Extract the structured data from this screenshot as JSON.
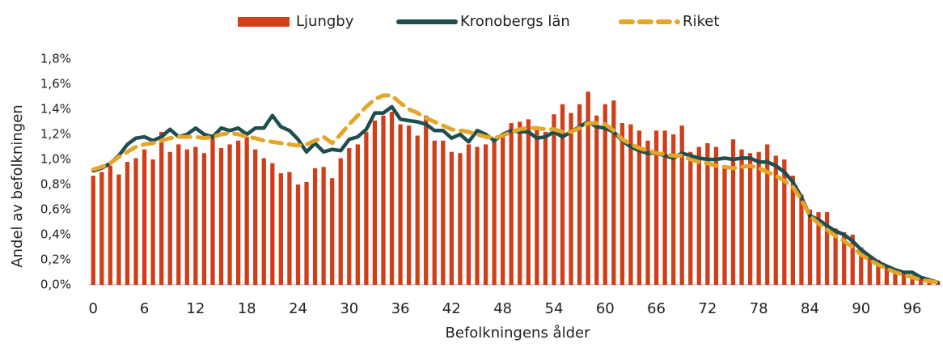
{
  "chart_data": {
    "type": "bar",
    "x_label": "Befolkningens ålder",
    "y_label": "Andel av befolkningen",
    "categories": [
      "0",
      null,
      null,
      null,
      null,
      null,
      "6",
      null,
      null,
      null,
      null,
      null,
      "12",
      null,
      null,
      null,
      null,
      null,
      "18",
      null,
      null,
      null,
      null,
      null,
      "24",
      null,
      null,
      null,
      null,
      null,
      "30",
      null,
      null,
      null,
      null,
      null,
      "36",
      null,
      null,
      null,
      null,
      null,
      "42",
      null,
      null,
      null,
      null,
      null,
      "48",
      null,
      null,
      null,
      null,
      null,
      "54",
      null,
      null,
      null,
      null,
      null,
      "60",
      null,
      null,
      null,
      null,
      null,
      "66",
      null,
      null,
      null,
      null,
      null,
      "72",
      null,
      null,
      null,
      null,
      null,
      "78",
      null,
      null,
      null,
      null,
      null,
      "84",
      null,
      null,
      null,
      null,
      null,
      "90",
      null,
      null,
      null,
      null,
      null,
      "96",
      null,
      null,
      null
    ],
    "series": [
      {
        "name": "Ljungby",
        "kind": "bar",
        "color": "#d13f1a",
        "values": [
          0.87,
          0.9,
          0.95,
          0.88,
          0.98,
          1.01,
          1.08,
          1.0,
          1.22,
          1.06,
          1.12,
          1.08,
          1.1,
          1.05,
          1.2,
          1.09,
          1.12,
          1.15,
          1.18,
          1.08,
          1.01,
          0.97,
          0.89,
          0.9,
          0.8,
          0.82,
          0.93,
          0.94,
          0.85,
          1.01,
          1.09,
          1.12,
          1.22,
          1.31,
          1.35,
          1.38,
          1.28,
          1.27,
          1.19,
          1.35,
          1.15,
          1.15,
          1.06,
          1.05,
          1.12,
          1.1,
          1.12,
          1.17,
          1.2,
          1.29,
          1.3,
          1.32,
          1.25,
          1.22,
          1.36,
          1.44,
          1.37,
          1.44,
          1.54,
          1.35,
          1.44,
          1.47,
          1.29,
          1.28,
          1.23,
          1.15,
          1.23,
          1.23,
          1.2,
          1.27,
          1.06,
          1.1,
          1.13,
          1.1,
          0.95,
          1.16,
          1.08,
          1.05,
          1.06,
          1.12,
          1.03,
          1.0,
          0.87,
          0.72,
          0.6,
          0.58,
          0.58,
          0.45,
          0.42,
          0.4,
          0.3,
          0.22,
          0.2,
          0.15,
          0.12,
          0.1,
          0.08,
          0.05,
          0.04,
          0.02
        ]
      },
      {
        "name": "Kronobergs län",
        "kind": "line",
        "color": "#1f4e4f",
        "dashed": false,
        "values": [
          0.91,
          0.93,
          0.97,
          1.03,
          1.12,
          1.17,
          1.18,
          1.15,
          1.18,
          1.24,
          1.18,
          1.2,
          1.25,
          1.2,
          1.18,
          1.25,
          1.23,
          1.25,
          1.2,
          1.25,
          1.25,
          1.35,
          1.26,
          1.23,
          1.16,
          1.06,
          1.13,
          1.06,
          1.08,
          1.07,
          1.16,
          1.18,
          1.24,
          1.37,
          1.37,
          1.42,
          1.32,
          1.31,
          1.3,
          1.28,
          1.23,
          1.23,
          1.17,
          1.2,
          1.14,
          1.23,
          1.2,
          1.15,
          1.2,
          1.23,
          1.22,
          1.22,
          1.17,
          1.18,
          1.22,
          1.18,
          1.22,
          1.26,
          1.3,
          1.26,
          1.25,
          1.22,
          1.15,
          1.1,
          1.07,
          1.05,
          1.05,
          1.03,
          1.01,
          1.05,
          1.03,
          1.01,
          1.0,
          1.0,
          1.01,
          1.0,
          1.01,
          1.01,
          0.98,
          0.98,
          0.95,
          0.9,
          0.82,
          0.7,
          0.55,
          0.52,
          0.47,
          0.43,
          0.4,
          0.35,
          0.28,
          0.23,
          0.18,
          0.15,
          0.12,
          0.1,
          0.1,
          0.06,
          0.04,
          0.02
        ]
      },
      {
        "name": "Riket",
        "kind": "line",
        "color": "#e3a62a",
        "dashed": true,
        "values": [
          0.92,
          0.94,
          0.97,
          1.02,
          1.06,
          1.1,
          1.12,
          1.13,
          1.15,
          1.17,
          1.18,
          1.18,
          1.18,
          1.17,
          1.18,
          1.2,
          1.21,
          1.2,
          1.18,
          1.17,
          1.15,
          1.14,
          1.13,
          1.12,
          1.11,
          1.12,
          1.15,
          1.18,
          1.13,
          1.2,
          1.28,
          1.35,
          1.42,
          1.48,
          1.51,
          1.51,
          1.45,
          1.4,
          1.37,
          1.33,
          1.3,
          1.27,
          1.24,
          1.23,
          1.22,
          1.2,
          1.18,
          1.17,
          1.19,
          1.22,
          1.24,
          1.25,
          1.25,
          1.24,
          1.24,
          1.22,
          1.22,
          1.25,
          1.29,
          1.29,
          1.28,
          1.23,
          1.16,
          1.12,
          1.09,
          1.07,
          1.05,
          1.04,
          1.03,
          1.03,
          1.0,
          0.98,
          0.97,
          0.95,
          0.94,
          0.93,
          0.94,
          0.95,
          0.93,
          0.9,
          0.87,
          0.83,
          0.78,
          0.68,
          0.55,
          0.49,
          0.44,
          0.39,
          0.35,
          0.3,
          0.24,
          0.2,
          0.16,
          0.13,
          0.1,
          0.08,
          0.06,
          0.04,
          0.03,
          0.02
        ]
      }
    ],
    "ylim": [
      0,
      1.8
    ],
    "yticks": [
      {
        "value": 0,
        "label": "0,0%"
      },
      {
        "value": 0.2,
        "label": "0,2%"
      },
      {
        "value": 0.4,
        "label": "0,4%"
      },
      {
        "value": 0.6,
        "label": "0,6%"
      },
      {
        "value": 0.8,
        "label": "0,8%"
      },
      {
        "value": 1.0,
        "label": "1,0%"
      },
      {
        "value": 1.2,
        "label": "1,2%"
      },
      {
        "value": 1.4,
        "label": "1,4%"
      },
      {
        "value": 1.6,
        "label": "1,6%"
      },
      {
        "value": 1.8,
        "label": "1,8%"
      }
    ],
    "grid": false,
    "legend": "top"
  }
}
